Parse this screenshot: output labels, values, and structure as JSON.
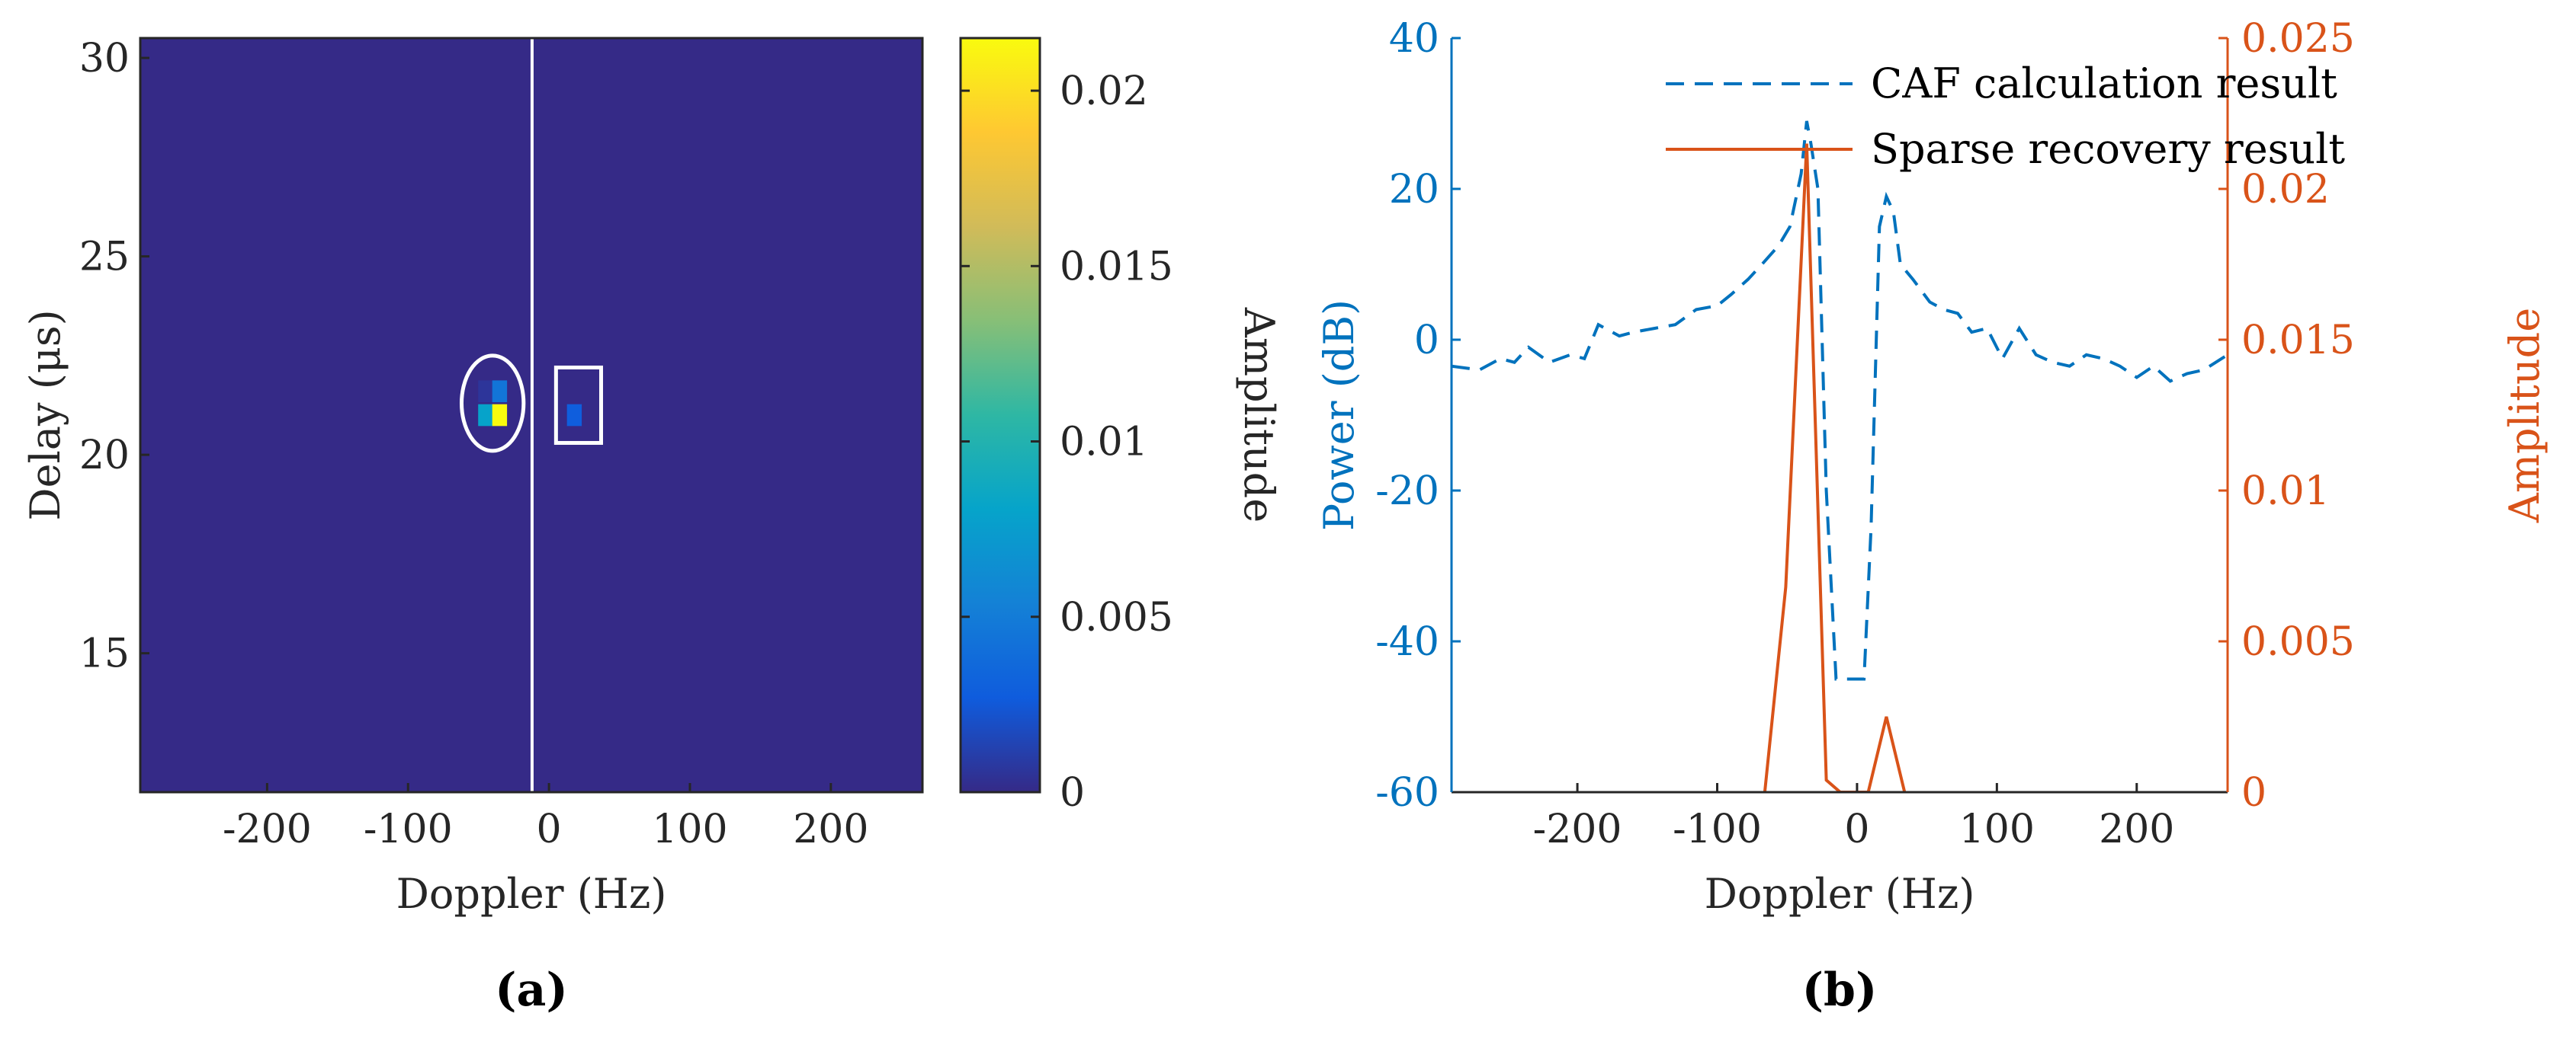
{
  "chart_data": [
    {
      "panel": "(a)",
      "type": "heatmap",
      "xlabel": "Doppler (Hz)",
      "ylabel": "Delay (μs)",
      "xlim": [
        -290,
        265
      ],
      "ylim": [
        11.5,
        30.5
      ],
      "xticks": [
        -200,
        -100,
        0,
        100,
        200
      ],
      "yticks": [
        15,
        20,
        25,
        30
      ],
      "background_value": 0,
      "cell_width_hz": 10.5,
      "cell_height_us": 0.55,
      "cells": [
        {
          "doppler": -45,
          "delay": 21.6,
          "value": 0.0006
        },
        {
          "doppler": -35,
          "delay": 21.6,
          "value": 0.0045
        },
        {
          "doppler": -45,
          "delay": 21.0,
          "value": 0.008
        },
        {
          "doppler": -35,
          "delay": 21.0,
          "value": 0.0215
        },
        {
          "doppler": 18,
          "delay": 21.0,
          "value": 0.0028
        }
      ],
      "colorbar": {
        "label": "Amplitude",
        "range": [
          0,
          0.0215
        ],
        "ticks": [
          "0",
          "0.005",
          "0.01",
          "0.015",
          "0.02"
        ],
        "tick_values": [
          0,
          0.005,
          0.01,
          0.015,
          0.02
        ],
        "colormap": "parula"
      },
      "annotations": [
        {
          "shape": "vertical-line",
          "doppler": -12
        },
        {
          "shape": "ellipse",
          "center_doppler": -40,
          "center_delay": 21.3,
          "half_width_hz": 22,
          "half_height_us": 1.2
        },
        {
          "shape": "rectangle",
          "doppler_range": [
            5,
            37
          ],
          "delay_range": [
            20.3,
            22.2
          ]
        }
      ],
      "colors": {
        "low": "#352a87",
        "high": "#f9fb0e",
        "annotation": "#ffffff"
      }
    },
    {
      "panel": "(b)",
      "type": "line",
      "xlabel": "Doppler (Hz)",
      "xlim": [
        -290,
        265
      ],
      "xticks": [
        -200,
        -100,
        0,
        100,
        200
      ],
      "y_left": {
        "label": "Power (dB)",
        "ylim": [
          -60,
          40
        ],
        "ticks": [
          -60,
          -40,
          -20,
          0,
          20,
          40
        ],
        "color": "#0072bd"
      },
      "y_right": {
        "label": "Amplitude",
        "ylim": [
          0,
          0.025
        ],
        "ticks": [
          "0",
          "0.005",
          "0.01",
          "0.015",
          "0.02",
          "0.025"
        ],
        "tick_values": [
          0,
          0.005,
          0.01,
          0.015,
          0.02,
          0.025
        ],
        "color": "#d95319"
      },
      "legend_position": "top-right",
      "series": [
        {
          "name": "CAF calculation result",
          "axis": "left",
          "style": "dashed",
          "color": "#0072bd",
          "x": [
            -290,
            -270,
            -255,
            -245,
            -235,
            -220,
            -205,
            -195,
            -185,
            -170,
            -160,
            -145,
            -130,
            -115,
            -100,
            -90,
            -78,
            -68,
            -56,
            -48,
            -40,
            -36,
            -33,
            -28,
            -22,
            -15,
            -10,
            -5,
            0,
            5,
            10,
            16,
            21,
            26,
            31,
            40,
            52,
            62,
            72,
            82,
            93,
            104,
            116,
            128,
            140,
            152,
            164,
            176,
            188,
            200,
            212,
            224,
            236,
            248,
            265
          ],
          "y": [
            -3.5,
            -4,
            -2.5,
            -3,
            -1,
            -3,
            -2,
            -2.5,
            2,
            0.5,
            1,
            1.5,
            2,
            4,
            4.5,
            6,
            8,
            10,
            12.5,
            15,
            22,
            29,
            26,
            20,
            -20,
            -45,
            -45,
            -45,
            -45,
            -45,
            -25,
            15,
            19,
            17,
            10,
            8,
            5,
            4,
            3.5,
            1,
            1.5,
            -2.5,
            1.5,
            -2,
            -3,
            -3.5,
            -2,
            -2.5,
            -3.5,
            -5,
            -3.5,
            -5.5,
            -4.5,
            -4,
            -2
          ]
        },
        {
          "name": "Sparse recovery result",
          "axis": "right",
          "style": "solid",
          "color": "#d95319",
          "x": [
            -66,
            -51,
            -36,
            -22,
            -12,
            -4,
            8,
            21,
            34
          ],
          "y": [
            0,
            0.0068,
            0.0215,
            0.0004,
            0,
            0,
            0,
            0.0025,
            0
          ]
        }
      ]
    }
  ],
  "panel_labels": {
    "a": "(a)",
    "b": "(b)"
  }
}
